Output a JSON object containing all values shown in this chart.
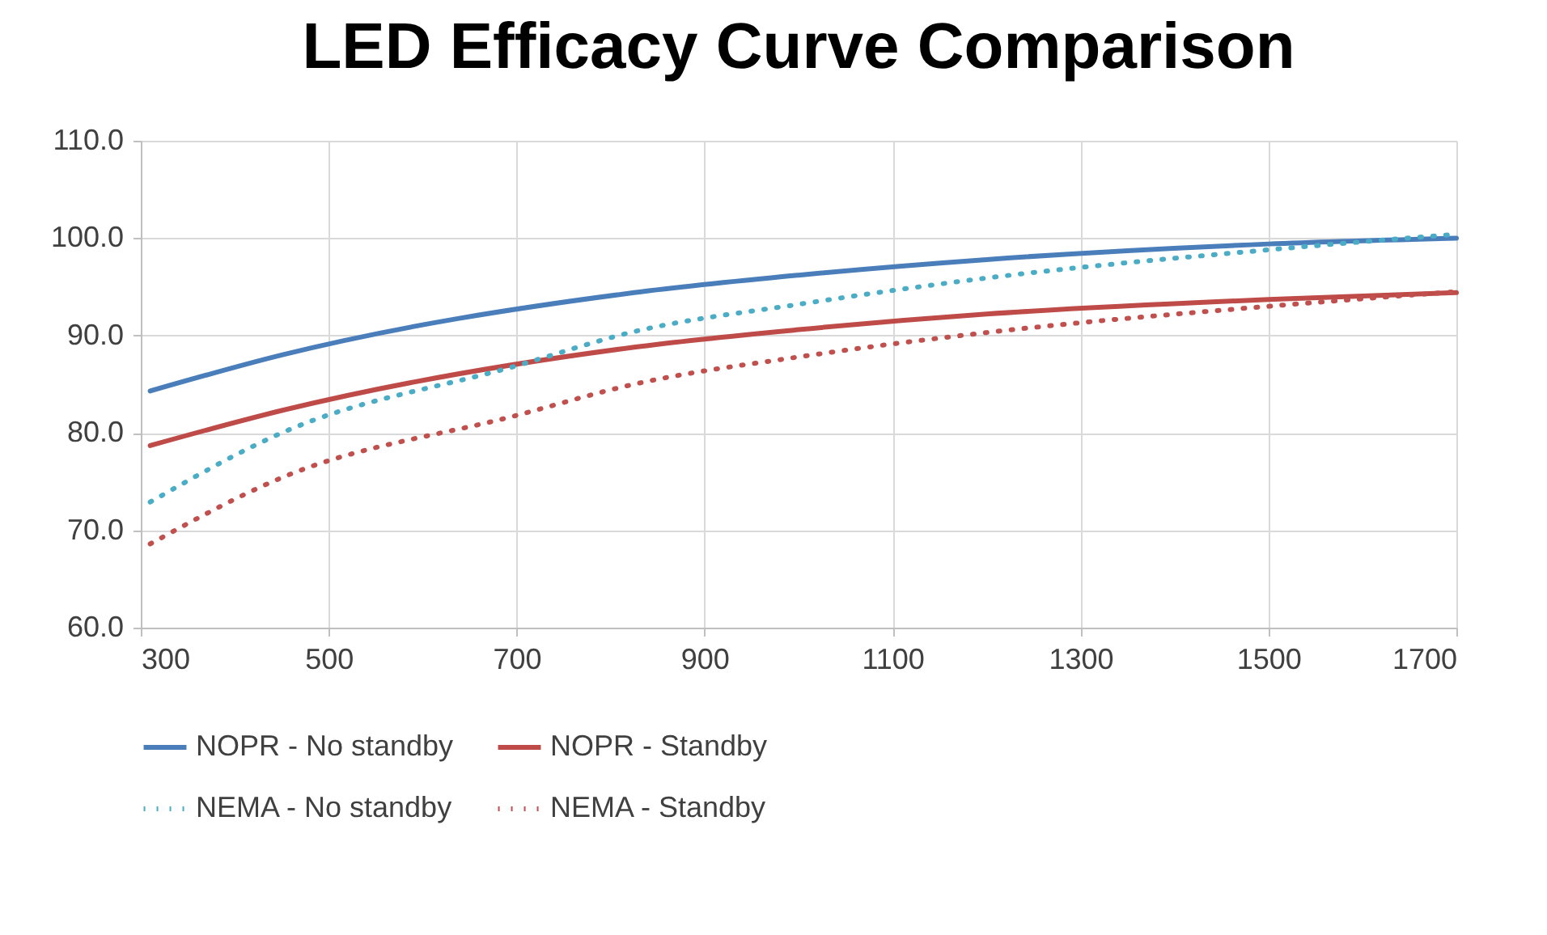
{
  "chart_data": {
    "type": "line",
    "title": "LED Efficacy Curve Comparison",
    "xlim": [
      300,
      1700
    ],
    "xticks": [
      300,
      500,
      700,
      900,
      1100,
      1300,
      1500,
      1700
    ],
    "ylim": [
      60,
      110
    ],
    "yticks": [
      {
        "value": 60,
        "label": "60.0"
      },
      {
        "value": 70,
        "label": "70.0"
      },
      {
        "value": 80,
        "label": "80.0"
      },
      {
        "value": 90,
        "label": "90.0"
      },
      {
        "value": 100,
        "label": "100.0"
      },
      {
        "value": 110,
        "label": "110.0"
      }
    ],
    "grid": true,
    "legend": "bottom",
    "marker": "none",
    "series": [
      {
        "name": "NOPR - No standby",
        "color": "#4a7ebb",
        "line_style": "solid",
        "x": [
          310,
          450,
          825,
          1000,
          1200,
          1500,
          1700
        ],
        "values": [
          84.3,
          88.0,
          94.4,
          96.2,
          97.8,
          99.4,
          100.0
        ]
      },
      {
        "name": "NOPR - Standby",
        "color": "#be4b48",
        "line_style": "solid",
        "x": [
          310,
          450,
          825,
          1000,
          1200,
          1500,
          1700
        ],
        "values": [
          78.7,
          82.3,
          88.8,
          90.6,
          92.2,
          93.7,
          94.4
        ]
      },
      {
        "name": "NEMA - No standby",
        "color": "#4bacc6",
        "line_style": "dotted",
        "x": [
          310,
          450,
          700,
          825,
          1000,
          1200,
          1500,
          1700
        ],
        "values": [
          72.9,
          80.0,
          86.9,
          90.4,
          93.2,
          95.9,
          98.8,
          100.4
        ]
      },
      {
        "name": "NEMA - Standby",
        "color": "#c0504d",
        "line_style": "dotted",
        "x": [
          310,
          450,
          700,
          825,
          1000,
          1200,
          1500,
          1700
        ],
        "values": [
          68.6,
          75.4,
          81.8,
          85.0,
          87.8,
          90.3,
          93.0,
          94.5
        ]
      }
    ]
  }
}
